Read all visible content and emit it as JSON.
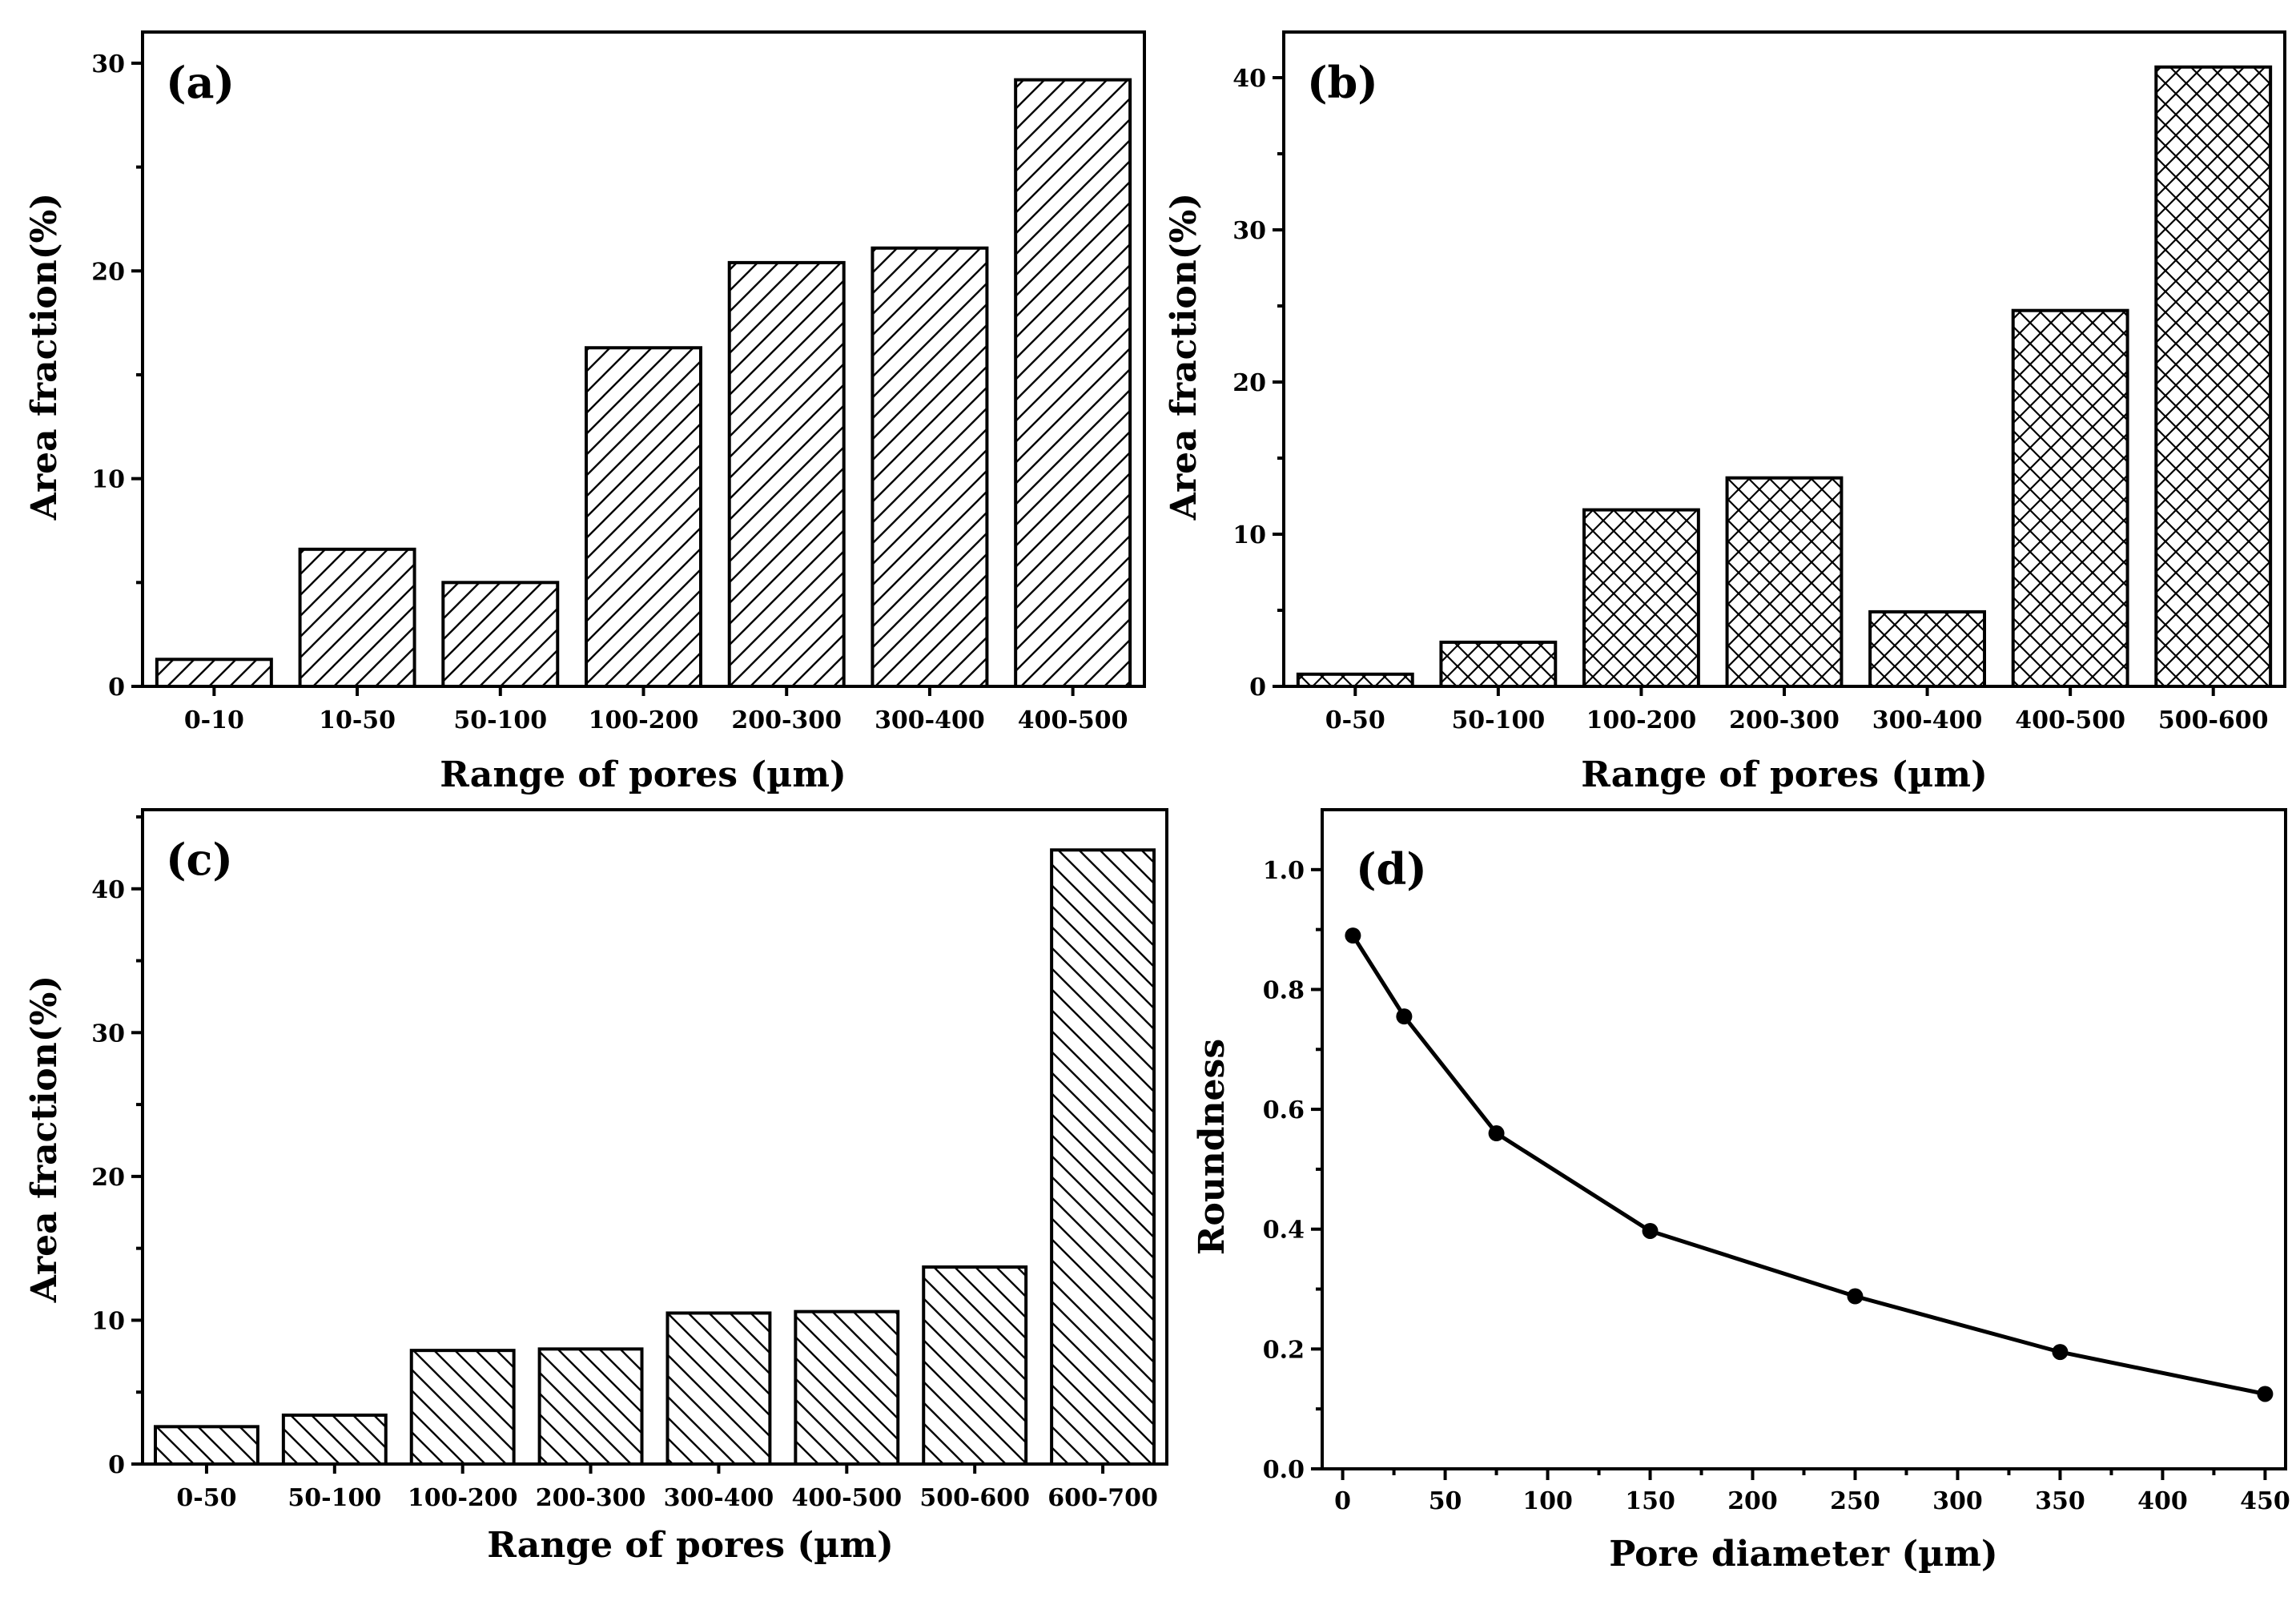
{
  "chart_data": [
    {
      "type": "bar",
      "panel_label": "(a)",
      "pattern": "diagonal",
      "title": "",
      "categories": [
        "0-10",
        "10-50",
        "50-100",
        "100-200",
        "200-300",
        "300-400",
        "400-500"
      ],
      "values": [
        1.3,
        6.6,
        5.0,
        16.3,
        20.4,
        21.1,
        29.2
      ],
      "xlabel": "Range of pores (µm)",
      "ylabel": "Area fraction(%)",
      "ylim": [
        0,
        31.5
      ],
      "yticks": [
        0,
        10,
        20,
        30
      ],
      "grid": false
    },
    {
      "type": "bar",
      "panel_label": "(b)",
      "pattern": "crosshatch",
      "title": "",
      "categories": [
        "0-50",
        "50-100",
        "100-200",
        "200-300",
        "300-400",
        "400-500",
        "500-600"
      ],
      "values": [
        0.8,
        2.9,
        11.6,
        13.7,
        4.9,
        24.7,
        40.7
      ],
      "xlabel": "Range of pores (µm)",
      "ylabel": "Area fraction(%)",
      "ylim": [
        0,
        43
      ],
      "yticks": [
        0,
        10,
        20,
        30,
        40
      ],
      "grid": false
    },
    {
      "type": "bar",
      "panel_label": "(c)",
      "pattern": "backslash",
      "title": "",
      "categories": [
        "0-50",
        "50-100",
        "100-200",
        "200-300",
        "300-400",
        "400-500",
        "500-600",
        "600-700"
      ],
      "values": [
        2.6,
        3.4,
        7.9,
        8.0,
        10.5,
        10.6,
        13.7,
        42.7
      ],
      "xlabel": "Range of pores (µm)",
      "ylabel": "Area fraction(%)",
      "ylim": [
        0,
        45.5
      ],
      "yticks": [
        0,
        10,
        20,
        30,
        40
      ],
      "grid": false
    },
    {
      "type": "line",
      "panel_label": "(d)",
      "title": "",
      "x": [
        5,
        30,
        75,
        150,
        250,
        350,
        450
      ],
      "y": [
        0.89,
        0.755,
        0.56,
        0.397,
        0.288,
        0.195,
        0.125
      ],
      "xlabel": "Pore diameter (µm)",
      "ylabel": "Roundness",
      "xlim": [
        -10,
        460
      ],
      "ylim": [
        0,
        1.1
      ],
      "xticks": [
        0,
        50,
        100,
        150,
        200,
        250,
        300,
        350,
        400,
        450
      ],
      "yticks": [
        "0.0",
        "0.2",
        "0.4",
        "0.6",
        "0.8",
        "1.0"
      ],
      "grid": false
    }
  ]
}
